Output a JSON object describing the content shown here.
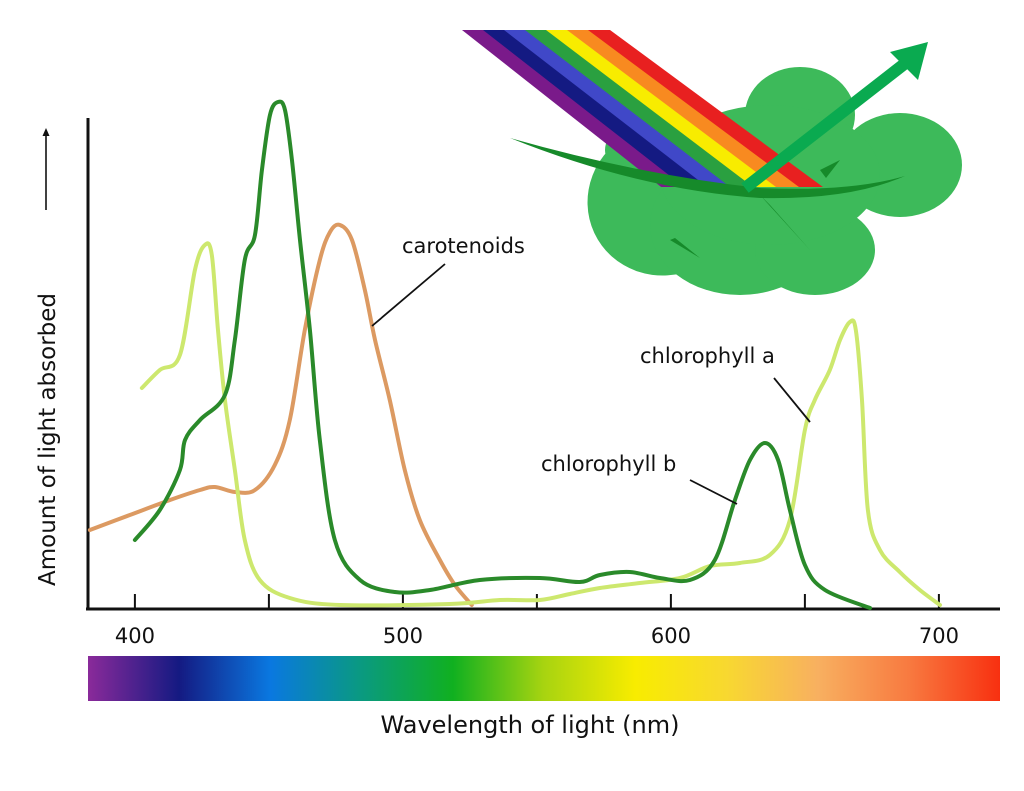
{
  "chart_data": {
    "type": "line",
    "title": "",
    "xlabel": "Wavelength of light (nm)",
    "ylabel": "Amount of light absorbed",
    "xlim": [
      382.5,
      722.8
    ],
    "ylim": [
      0,
      98
    ],
    "x_ticks": [
      400,
      450,
      500,
      550,
      600,
      650,
      700
    ],
    "x_tick_labels": [
      "400",
      "500",
      "600",
      "700"
    ],
    "x_tick_label_values": [
      400,
      500,
      600,
      700
    ],
    "grid": false,
    "legend": "none (inline labels)",
    "series": [
      {
        "name": "chlorophyll b",
        "label": "chlorophyll b",
        "color": "#2a8a2a",
        "x": [
          400,
          409.3,
          416.8,
          418.7,
          424.3,
          433.6,
          437.3,
          441.0,
          444.8,
          447.4,
          450.4,
          453.4,
          456.0,
          458.6,
          461.6,
          465.3,
          469.0,
          474.6,
          484.0,
          497.0,
          510.1,
          528.7,
          551.1,
          566.0,
          573.5,
          584.7,
          595.9,
          607.1,
          616.4,
          623.9,
          629.5,
          635.1,
          640.0,
          644.4,
          650.0,
          657.5,
          674.3
        ],
        "y": [
          13.6,
          19.6,
          27.6,
          33.6,
          37.6,
          42.6,
          53.6,
          69.6,
          74.6,
          87.6,
          98.6,
          101.2,
          99.6,
          89.6,
          73.6,
          55.6,
          33.6,
          13.6,
          5.6,
          3.2,
          3.6,
          5.6,
          6,
          5.2,
          6.6,
          7.2,
          6,
          5.6,
          9.6,
          21.6,
          29.6,
          33,
          29.6,
          19.6,
          8.6,
          3.6,
          0
        ]
      },
      {
        "name": "chlorophyll a",
        "label": "chlorophyll a",
        "color": "#cde86e",
        "x": [
          402.6,
          409.3,
          416.8,
          422.4,
          426.1,
          428.7,
          431.0,
          433.6,
          437.3,
          441.0,
          446.6,
          457.8,
          476.5,
          517.5,
          536.2,
          551.1,
          562.3,
          573.5,
          588.4,
          603.4,
          614.6,
          625.7,
          636.9,
          644.4,
          650.0,
          653.7,
          659.3,
          663.1,
          666.8,
          669.0,
          671.3,
          673.5,
          678.0,
          685.4,
          692.9,
          700.4
        ],
        "y": [
          44,
          47.6,
          50.6,
          67.6,
          72.6,
          70.6,
          55.6,
          41.6,
          27.6,
          13.6,
          5.6,
          2,
          0.6,
          0.8,
          1.6,
          1.6,
          2.8,
          4,
          5,
          6,
          8.4,
          9,
          10.6,
          17.6,
          35.6,
          41.6,
          47.6,
          53.6,
          57.2,
          55.6,
          41.6,
          19.6,
          11.6,
          7.2,
          3.6,
          0.6
        ]
      },
      {
        "name": "carotenoids",
        "label": "carotenoids",
        "color": "#dc9a62",
        "x": [
          383.2,
          398.1,
          413.1,
          424.3,
          429.9,
          437.3,
          444.8,
          452.2,
          457.8,
          463.4,
          469.0,
          472.8,
          476.5,
          481.0,
          485.8,
          489.6,
          495.1,
          500.7,
          506.3,
          513.8,
          519.4,
          525.7
        ],
        "y": [
          15.6,
          18.6,
          21.6,
          23.6,
          24.2,
          23.2,
          23.6,
          28.6,
          37.6,
          55.6,
          69.6,
          75.2,
          76.6,
          73.6,
          63.6,
          53.6,
          41.6,
          27.6,
          17.6,
          9.6,
          4.6,
          0.6
        ]
      }
    ],
    "spectrum_bar_colors": [
      "#8a2a9a",
      "#141a82",
      "#0a78e0",
      "#0a9a80",
      "#10b020",
      "#a8d410",
      "#f8ec00",
      "#f8d830",
      "#f8b060",
      "#f87a40",
      "#f83010"
    ]
  }
}
